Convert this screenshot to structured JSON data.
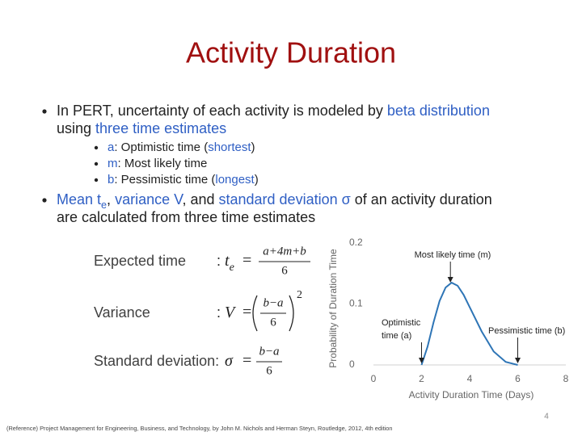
{
  "title": "Activity Duration",
  "bullets": [
    {
      "lines": [
        [
          {
            "text": "In PERT, uncertainty of each activity is modeled by "
          },
          {
            "text": "beta distribution",
            "highlight": true
          }
        ],
        [
          {
            "text": "using "
          },
          {
            "text": "three time estimates",
            "highlight": true
          }
        ]
      ],
      "sub": [
        [
          {
            "text": "a",
            "highlight": true
          },
          {
            "text": ": Optimistic time ("
          },
          {
            "text": "shortest",
            "highlight": true
          },
          {
            "text": ")"
          }
        ],
        [
          {
            "text": "m",
            "highlight": true
          },
          {
            "text": ": Most likely time"
          }
        ],
        [
          {
            "text": "b",
            "highlight": true
          },
          {
            "text": ": Pessimistic time ("
          },
          {
            "text": "longest",
            "highlight": true
          },
          {
            "text": ")"
          }
        ]
      ]
    },
    {
      "lines": [
        [
          {
            "text": "Mean t",
            "highlight": true
          },
          {
            "text": "e",
            "highlight": true,
            "sub": true
          },
          {
            "text": ", "
          },
          {
            "text": "variance V",
            "highlight": true
          },
          {
            "text": ", and "
          },
          {
            "text": "standard deviation σ",
            "highlight": true
          },
          {
            "text": " of an activity duration"
          }
        ],
        [
          {
            "text": "are calculated from three time estimates"
          }
        ]
      ],
      "sub": []
    }
  ],
  "formulas": [
    {
      "label": "Expected time",
      "prefix": ":",
      "lhs": "t",
      "lhs_sub": "e",
      "op": "=",
      "num": "a+4m+b",
      "den": "6"
    },
    {
      "label": "Variance",
      "prefix": ":",
      "lhs": "V",
      "op": "=",
      "num": "b−a",
      "den": "6",
      "exp": "2"
    },
    {
      "label": "Standard deviation:",
      "lhs": "σ",
      "op": "=",
      "num": "b−a",
      "den": "6"
    }
  ],
  "chart_data": {
    "type": "line",
    "x": [
      2,
      2.25,
      2.5,
      2.75,
      3,
      3.25,
      3.5,
      3.75,
      4,
      4.5,
      5,
      5.5,
      6
    ],
    "values": [
      0,
      0.03,
      0.07,
      0.105,
      0.127,
      0.135,
      0.13,
      0.115,
      0.095,
      0.055,
      0.022,
      0.005,
      0
    ],
    "color": "#2e75b6",
    "xlim": [
      0,
      8
    ],
    "ylim": [
      0,
      0.2
    ],
    "xticks": [
      0,
      2,
      4,
      6,
      8
    ],
    "yticks": [
      0,
      0.1,
      0.2
    ],
    "x_label": "Activity Duration Time (Days)",
    "y_label": "Probability of Duration Time",
    "annotations": [
      {
        "text": [
          "Most likely time (m)"
        ],
        "x": 3.2
      },
      {
        "text": [
          "Optimistic",
          "time (a)"
        ],
        "x": 2
      },
      {
        "text": [
          "Pessimistic time (b)"
        ],
        "x": 6
      }
    ]
  },
  "page_number": "4",
  "reference": "(Reference) Project Management for Engineering, Business, and Technology, by John M. Nichols and Herman Steyn, Routledge, 2012, 4th edition"
}
